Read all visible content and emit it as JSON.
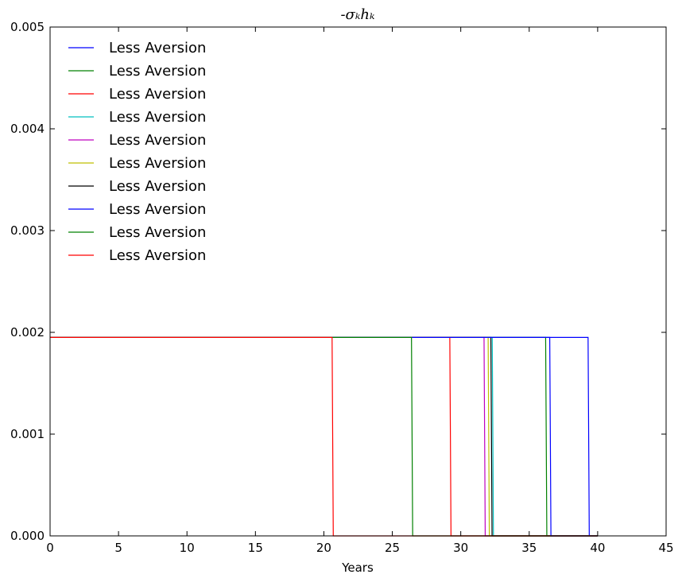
{
  "chart_data": {
    "type": "line",
    "title": "-σₖhₖ",
    "xlabel": "Years",
    "ylabel": "",
    "xlim": [
      0,
      45
    ],
    "ylim": [
      0,
      0.005
    ],
    "xticks": [
      "0",
      "5",
      "10",
      "15",
      "20",
      "25",
      "30",
      "35",
      "40",
      "45"
    ],
    "yticks": [
      "0.000",
      "0.001",
      "0.002",
      "0.003",
      "0.004",
      "0.005"
    ],
    "grid": false,
    "legend_position": "top-left",
    "plateau_value": 0.00195,
    "x_end": 40,
    "series": [
      {
        "name": "Less Aversion",
        "color": "#0000ff",
        "drop_x": 39.3
      },
      {
        "name": "Less Aversion",
        "color": "#008000",
        "drop_x": 36.2
      },
      {
        "name": "Less Aversion",
        "color": "#ff0000",
        "drop_x": 29.2
      },
      {
        "name": "Less Aversion",
        "color": "#00bfbf",
        "drop_x": 32.3
      },
      {
        "name": "Less Aversion",
        "color": "#bf00bf",
        "drop_x": 31.7
      },
      {
        "name": "Less Aversion",
        "color": "#bfbf00",
        "drop_x": 32.0
      },
      {
        "name": "Less Aversion",
        "color": "#000000",
        "drop_x": 32.2
      },
      {
        "name": "Less Aversion",
        "color": "#0000ff",
        "drop_x": 36.5
      },
      {
        "name": "Less Aversion",
        "color": "#008000",
        "drop_x": 26.4
      },
      {
        "name": "Less Aversion",
        "color": "#ff0000",
        "drop_x": 20.6
      }
    ]
  }
}
